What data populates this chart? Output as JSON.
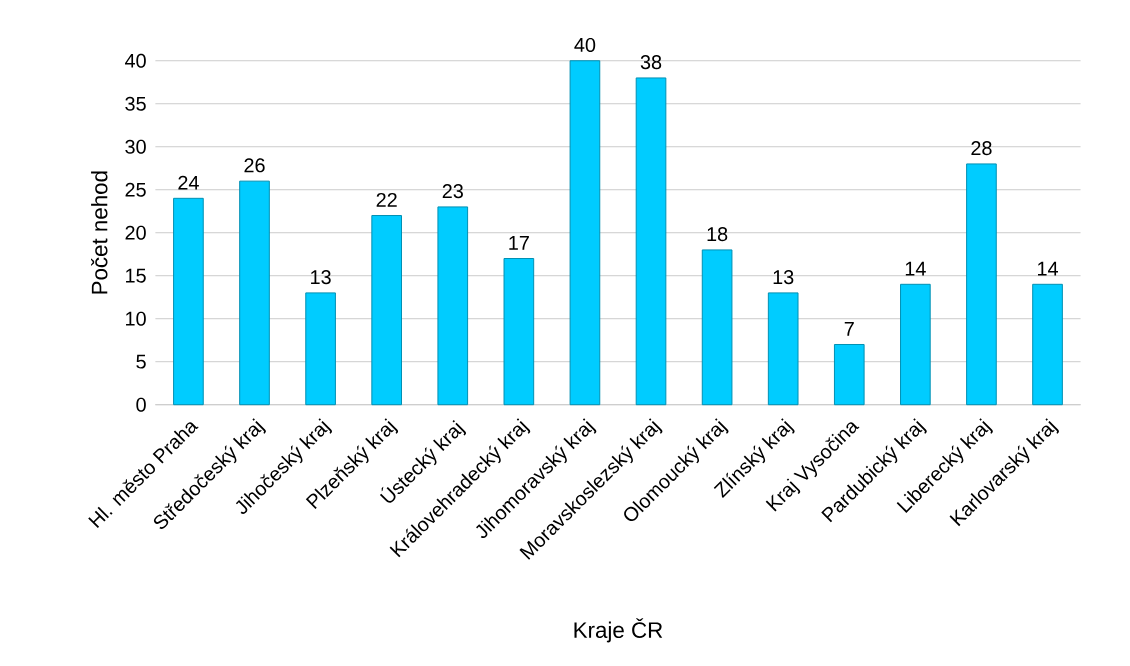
{
  "chart_data": {
    "type": "bar",
    "xlabel": "Kraje ČR",
    "ylabel": "Počet nehod",
    "categories": [
      "Hl. město Praha",
      "Středočeský kraj",
      "Jihočeský kraj",
      "Plzeňský kraj",
      "Ústecký kraj",
      "Královehradecký kraj",
      "Jihomoravský kraj",
      "Moravskoslezský kraj",
      "Olomoucký kraj",
      "Zlínský kraj",
      "Kraj Vysočina",
      "Pardubický kraj",
      "Liberecký kraj",
      "Karlovarský kraj"
    ],
    "values": [
      24,
      26,
      13,
      22,
      23,
      17,
      40,
      38,
      18,
      13,
      7,
      14,
      28,
      14
    ],
    "color": "#00ccff",
    "ylim": [
      0,
      40
    ],
    "yticks": [
      0,
      5,
      10,
      15,
      20,
      25,
      30,
      35,
      40
    ],
    "grid": "y",
    "data_labels": true
  }
}
